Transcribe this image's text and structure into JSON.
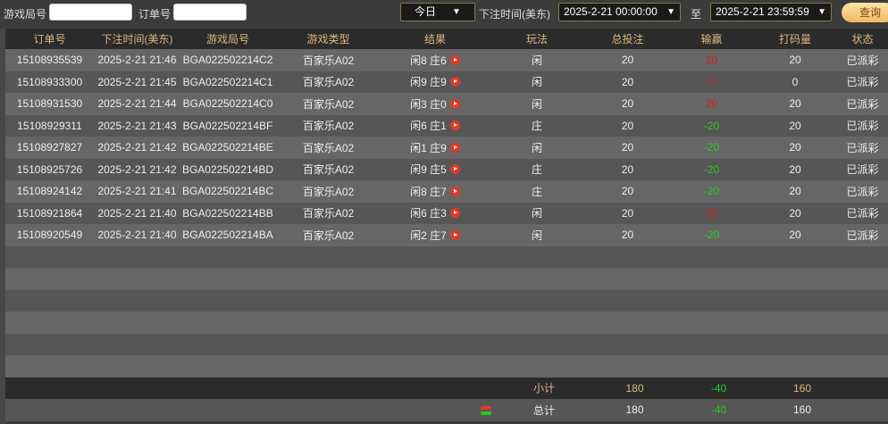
{
  "filters": {
    "round_label": "游戏局号",
    "round_value": "",
    "order_label": "订单号",
    "order_value": "",
    "period": "今日",
    "time_label": "下注时间(美东)",
    "start": "2025-2-21 00:00:00",
    "to": "至",
    "end": "2025-2-21 23:59:59",
    "query": "查询"
  },
  "columns": [
    "订单号",
    "下注时间(美东)",
    "游戏局号",
    "游戏类型",
    "结果",
    "玩法",
    "总投注",
    "输赢",
    "打码量",
    "状态"
  ],
  "rows": [
    [
      "15108935539",
      "2025-2-21 21:46",
      "BGA022502214C2",
      "百家乐A02",
      "闲8 庄6",
      "闲",
      "20",
      "20",
      "20",
      "已派彩"
    ],
    [
      "15108933300",
      "2025-2-21 21:45",
      "BGA022502214C1",
      "百家乐A02",
      "闲9 庄9",
      "闲",
      "20",
      "0",
      "0",
      "已派彩"
    ],
    [
      "15108931530",
      "2025-2-21 21:44",
      "BGA022502214C0",
      "百家乐A02",
      "闲3 庄0",
      "闲",
      "20",
      "20",
      "20",
      "已派彩"
    ],
    [
      "15108929311",
      "2025-2-21 21:43",
      "BGA022502214BF",
      "百家乐A02",
      "闲6 庄1",
      "庄",
      "20",
      "-20",
      "20",
      "已派彩"
    ],
    [
      "15108927827",
      "2025-2-21 21:42",
      "BGA022502214BE",
      "百家乐A02",
      "闲1 庄9",
      "闲",
      "20",
      "-20",
      "20",
      "已派彩"
    ],
    [
      "15108925726",
      "2025-2-21 21:42",
      "BGA022502214BD",
      "百家乐A02",
      "闲9 庄5",
      "庄",
      "20",
      "-20",
      "20",
      "已派彩"
    ],
    [
      "15108924142",
      "2025-2-21 21:41",
      "BGA022502214BC",
      "百家乐A02",
      "闲8 庄7",
      "庄",
      "20",
      "-20",
      "20",
      "已派彩"
    ],
    [
      "15108921864",
      "2025-2-21 21:40",
      "BGA022502214BB",
      "百家乐A02",
      "闲6 庄3",
      "闲",
      "20",
      "20",
      "20",
      "已派彩"
    ],
    [
      "15108920549",
      "2025-2-21 21:40",
      "BGA022502214BA",
      "百家乐A02",
      "闲2 庄7",
      "闲",
      "20",
      "-20",
      "20",
      "已派彩"
    ]
  ],
  "subtotal": {
    "label": "小计",
    "bet": "180",
    "win": "-40",
    "code": "160"
  },
  "total": {
    "label": "总计",
    "bet": "180",
    "win": "-40",
    "code": "160",
    "icon": "refresh-icon"
  },
  "colors": {
    "win": "#d42020",
    "lose": "#22cc22",
    "accent": "#d9b77e"
  }
}
